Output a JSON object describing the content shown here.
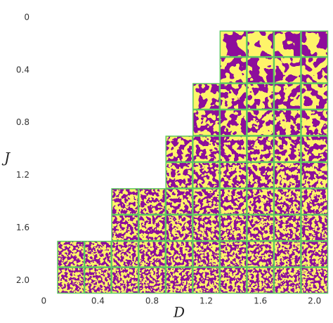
{
  "chart_data": {
    "type": "tile-grid",
    "xlabel": "D",
    "ylabel": "J",
    "x": [
      1.4,
      1.6,
      1.8,
      2.0,
      1.4,
      1.6,
      1.8,
      2.0,
      1.2,
      1.4,
      1.6,
      1.8,
      2.0,
      1.2,
      1.4,
      1.6,
      1.8,
      2.0,
      1.0,
      1.2,
      1.4,
      1.6,
      1.8,
      2.0,
      1.0,
      1.2,
      1.4,
      1.6,
      1.8,
      2.0,
      0.6,
      0.8,
      1.0,
      1.2,
      1.4,
      1.6,
      1.8,
      2.0,
      0.6,
      0.8,
      1.0,
      1.2,
      1.4,
      1.6,
      1.8,
      2.0,
      0.2,
      0.4,
      0.6,
      0.8,
      1.0,
      1.2,
      1.4,
      1.6,
      1.8,
      2.0,
      0.2,
      0.4,
      0.6,
      0.8,
      1.0,
      1.2,
      1.4,
      1.6,
      1.8,
      2.0
    ],
    "y": [
      0.2,
      0.2,
      0.2,
      0.2,
      0.4,
      0.4,
      0.4,
      0.4,
      0.6,
      0.6,
      0.6,
      0.6,
      0.6,
      0.8,
      0.8,
      0.8,
      0.8,
      0.8,
      1.0,
      1.0,
      1.0,
      1.0,
      1.0,
      1.0,
      1.2,
      1.2,
      1.2,
      1.2,
      1.2,
      1.2,
      1.4,
      1.4,
      1.4,
      1.4,
      1.4,
      1.4,
      1.4,
      1.4,
      1.6,
      1.6,
      1.6,
      1.6,
      1.6,
      1.6,
      1.6,
      1.6,
      1.8,
      1.8,
      1.8,
      1.8,
      1.8,
      1.8,
      1.8,
      1.8,
      1.8,
      1.8,
      2.0,
      2.0,
      2.0,
      2.0,
      2.0,
      2.0,
      2.0,
      2.0,
      2.0,
      2.0
    ],
    "xlim": [
      -0.1,
      2.1
    ],
    "ylim": [
      0,
      2.1
    ],
    "xticks": [
      0,
      0.4,
      0.8,
      1.2,
      1.6,
      {
        "value": 2,
        "label": "2.0"
      }
    ],
    "yticks": [
      0,
      0.4,
      0.8,
      1.2,
      1.6,
      {
        "value": 2,
        "label": "2.0"
      }
    ],
    "border_color": "#5ec962"
  }
}
